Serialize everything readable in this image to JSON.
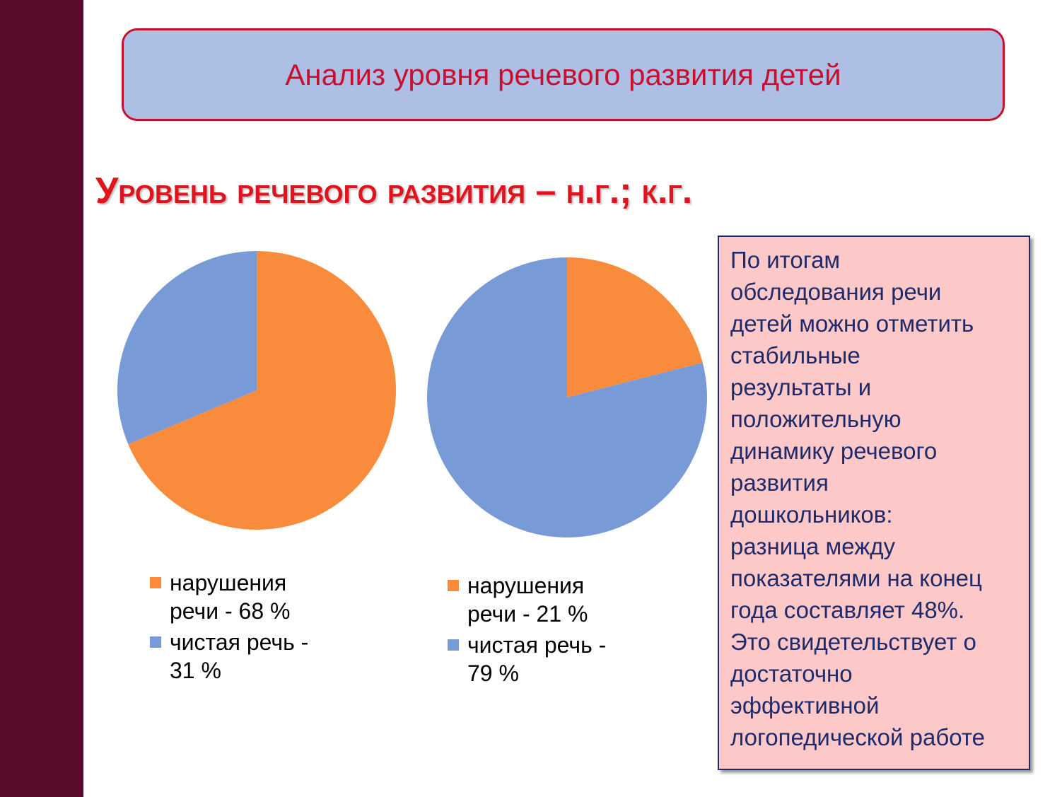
{
  "header": {
    "title": "Анализ уровня речевого развития детей"
  },
  "subtitle": "Уровень речевого развития – н.г.; к.г.",
  "chart_data": [
    {
      "type": "pie",
      "categories": [
        "нарушения речи - 68 %",
        "чистая речь - 31 %"
      ],
      "values": [
        68,
        31
      ],
      "colors": [
        "#f98b3d",
        "#789bd8"
      ]
    },
    {
      "type": "pie",
      "categories": [
        "нарушения речи - 21 %",
        "чистая речь - 79 %"
      ],
      "values": [
        21,
        79
      ],
      "colors": [
        "#f98b3d",
        "#789bd8"
      ]
    }
  ],
  "note": {
    "lines": [
      "По итогам",
      "обследования речи",
      "детей можно отметить",
      "стабильные",
      "результаты и",
      "положительную",
      "динамику речевого",
      "развития",
      "дошкольников:",
      "разница между",
      "показателями на конец",
      "года составляет 48%.",
      "Это свидетельствует о",
      "достаточно",
      "эффективной",
      "логопедической работе"
    ]
  }
}
